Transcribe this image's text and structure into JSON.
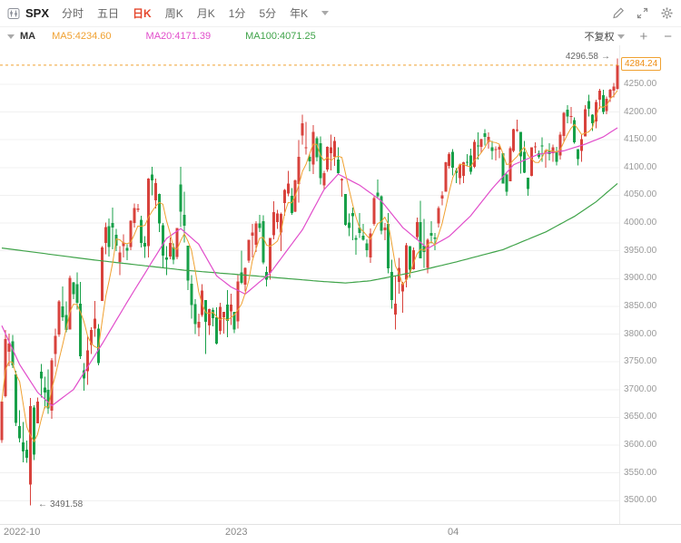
{
  "toolbar": {
    "symbol": "SPX",
    "active_color": "#e5472d",
    "tabs": [
      {
        "label": "分时",
        "active": false
      },
      {
        "label": "五日",
        "active": false
      },
      {
        "label": "日K",
        "active": true
      },
      {
        "label": "周K",
        "active": false
      },
      {
        "label": "月K",
        "active": false
      },
      {
        "label": "1分",
        "active": false
      },
      {
        "label": "5分",
        "active": false
      },
      {
        "label": "年K",
        "active": false
      }
    ],
    "icons": [
      "caret-down-icon",
      "pencil-icon",
      "expand-icon",
      "gear-icon"
    ]
  },
  "legend": {
    "indicator": "MA",
    "items": [
      {
        "label": "MA5:4234.60",
        "color": "#f0a131"
      },
      {
        "label": "MA20:4171.39",
        "color": "#e14dcb"
      },
      {
        "label": "MA100:4071.25",
        "color": "#3fa349"
      }
    ],
    "adjust_label": "不复权",
    "zoom_in": "+",
    "zoom_out": "−"
  },
  "chart_data": {
    "type": "candlestick",
    "symbol": "SPX",
    "period": "日K",
    "current_price": 4284.24,
    "current_price_label": "4284.24",
    "high_annotation": {
      "text": "4296.58",
      "price": 4296.58,
      "index": 172,
      "arrow": "→"
    },
    "low_annotation": {
      "text": "3491.58",
      "price": 3491.58,
      "index": 8,
      "arrow": "←"
    },
    "price_range": {
      "min": 3458,
      "max": 4320
    },
    "y_axis_labels": [
      "4250.00",
      "4200.00",
      "4150.00",
      "4100.00",
      "4050.00",
      "4000.00",
      "3950.00",
      "3900.00",
      "3850.00",
      "3800.00",
      "3750.00",
      "3700.00",
      "3650.00",
      "3600.00",
      "3550.00",
      "3500.00"
    ],
    "x_axis_labels": [
      {
        "label": "2022-10",
        "index": 0
      },
      {
        "label": "2023",
        "index": 63
      },
      {
        "label": "04",
        "index": 125
      }
    ],
    "colors": {
      "up": "#d8423c",
      "down": "#18a049",
      "ma5": "#f0a131",
      "ma20": "#e14dcb",
      "ma100": "#3fa349",
      "current": "#f0a131",
      "grid": "#f0f0f0"
    },
    "ma20_points": [
      [
        0,
        3815
      ],
      [
        5,
        3745
      ],
      [
        10,
        3695
      ],
      [
        14,
        3671
      ],
      [
        20,
        3700
      ],
      [
        28,
        3782
      ],
      [
        36,
        3868
      ],
      [
        41,
        3920
      ],
      [
        46,
        3972
      ],
      [
        50,
        3990
      ],
      [
        55,
        3962
      ],
      [
        60,
        3905
      ],
      [
        64,
        3885
      ],
      [
        68,
        3872
      ],
      [
        75,
        3910
      ],
      [
        84,
        3988
      ],
      [
        90,
        4060
      ],
      [
        94,
        4088
      ],
      [
        100,
        4068
      ],
      [
        106,
        4040
      ],
      [
        112,
        3992
      ],
      [
        119,
        3954
      ],
      [
        125,
        3976
      ],
      [
        131,
        4013
      ],
      [
        137,
        4062
      ],
      [
        143,
        4105
      ],
      [
        150,
        4124
      ],
      [
        157,
        4130
      ],
      [
        163,
        4142
      ],
      [
        168,
        4155
      ],
      [
        172,
        4171.39
      ]
    ],
    "ma100_points": [
      [
        0,
        3955
      ],
      [
        25,
        3934
      ],
      [
        51,
        3915
      ],
      [
        76,
        3902
      ],
      [
        89,
        3895
      ],
      [
        96,
        3892
      ],
      [
        103,
        3896
      ],
      [
        114,
        3910
      ],
      [
        127,
        3930
      ],
      [
        140,
        3952
      ],
      [
        152,
        3984
      ],
      [
        160,
        4012
      ],
      [
        166,
        4038
      ],
      [
        172,
        4071.25
      ]
    ],
    "candles": [
      [
        3609,
        3681,
        3604,
        3678
      ],
      [
        3688,
        3807,
        3686,
        3791
      ],
      [
        3768,
        3801,
        3742,
        3783
      ],
      [
        3787,
        3798,
        3739,
        3744
      ],
      [
        3727,
        3734,
        3634,
        3640
      ],
      [
        3634,
        3663,
        3605,
        3612
      ],
      [
        3605,
        3642,
        3569,
        3589
      ],
      [
        3592,
        3608,
        3568,
        3577
      ],
      [
        3529,
        3685,
        3491.58,
        3670
      ],
      [
        3668,
        3672,
        3573,
        3583
      ],
      [
        3639,
        3686,
        3639,
        3678
      ],
      [
        3732,
        3746,
        3686,
        3720
      ],
      [
        3704,
        3723,
        3666,
        3695
      ],
      [
        3700,
        3736,
        3656,
        3666
      ],
      [
        3662,
        3757,
        3647,
        3753
      ],
      [
        3764,
        3810,
        3741,
        3797
      ],
      [
        3799,
        3861,
        3795,
        3859
      ],
      [
        3850,
        3886,
        3824,
        3830
      ],
      [
        3834,
        3859,
        3803,
        3807
      ],
      [
        3808,
        3905,
        3808,
        3901
      ],
      [
        3893,
        3894,
        3863,
        3872
      ],
      [
        3890,
        3911,
        3844,
        3856
      ],
      [
        3855,
        3894,
        3755,
        3760
      ],
      [
        3735,
        3748,
        3698,
        3720
      ],
      [
        3733,
        3796,
        3709,
        3771
      ],
      [
        3780,
        3812,
        3764,
        3807
      ],
      [
        3810,
        3860,
        3795,
        3828
      ],
      [
        3810,
        3818,
        3744,
        3748
      ],
      [
        3860,
        3958,
        3860,
        3956
      ],
      [
        3964,
        4001,
        3944,
        3993
      ],
      [
        3994,
        4008,
        3940,
        3957
      ],
      [
        4000,
        4028,
        3953,
        3992
      ],
      [
        3979,
        3989,
        3949,
        3959
      ],
      [
        3930,
        3958,
        3906,
        3947
      ],
      [
        3958,
        3980,
        3938,
        3965
      ],
      [
        3955,
        3962,
        3933,
        3950
      ],
      [
        3957,
        4005,
        3951,
        4004
      ],
      [
        4000,
        4035,
        3992,
        4027
      ],
      [
        4024,
        4034,
        4020,
        4026
      ],
      [
        4006,
        4013,
        3956,
        3964
      ],
      [
        3964,
        3976,
        3937,
        3958
      ],
      [
        3958,
        4081,
        3938,
        4080
      ],
      [
        4087,
        4101,
        4050,
        4077
      ],
      [
        4041,
        4080,
        4026,
        4072
      ],
      [
        4052,
        4053,
        3984,
        3999
      ],
      [
        3996,
        4000,
        3918,
        3941
      ],
      [
        3938,
        3958,
        3906,
        3934
      ],
      [
        3940,
        3974,
        3935,
        3964
      ],
      [
        3957,
        3963,
        3926,
        3934
      ],
      [
        3939,
        3991,
        3935,
        3991
      ],
      [
        4069,
        4101,
        3993,
        4020
      ],
      [
        4015,
        4056,
        3965,
        3995
      ],
      [
        3959,
        3959,
        3879,
        3896
      ],
      [
        3891,
        3906,
        3828,
        3852
      ],
      [
        3854,
        3863,
        3800,
        3818
      ],
      [
        3811,
        3837,
        3796,
        3822
      ],
      [
        3834,
        3890,
        3831,
        3878
      ],
      [
        3861,
        3861,
        3764,
        3822
      ],
      [
        3816,
        3846,
        3798,
        3845
      ],
      [
        3843,
        3847,
        3814,
        3829
      ],
      [
        3830,
        3848,
        3781,
        3783
      ],
      [
        3806,
        3856,
        3799,
        3849
      ],
      [
        3830,
        3840,
        3801,
        3840
      ],
      [
        3853,
        3879,
        3794,
        3824
      ],
      [
        3841,
        3873,
        3816,
        3853
      ],
      [
        3840,
        3840,
        3802,
        3808
      ],
      [
        3823,
        3906,
        3810,
        3895
      ],
      [
        3911,
        3950,
        3890,
        3892
      ],
      [
        3889,
        3920,
        3877,
        3919
      ],
      [
        3932,
        3970,
        3928,
        3970
      ],
      [
        3977,
        3998,
        3938,
        3983
      ],
      [
        3961,
        4003,
        3948,
        3999
      ],
      [
        3999,
        4015,
        3984,
        3991
      ],
      [
        4003,
        4014,
        3926,
        3929
      ],
      [
        3912,
        3922,
        3886,
        3898
      ],
      [
        3910,
        3973,
        3898,
        3973
      ],
      [
        3978,
        4039,
        3971,
        4020
      ],
      [
        4002,
        4024,
        3989,
        4017
      ],
      [
        3983,
        4019,
        3949,
        4016
      ],
      [
        4036,
        4061,
        4013,
        4060
      ],
      [
        4053,
        4094,
        4048,
        4071
      ],
      [
        4049,
        4063,
        4015,
        4018
      ],
      [
        4020,
        4078,
        4020,
        4077
      ],
      [
        4070,
        4149,
        4037,
        4119
      ],
      [
        4158,
        4195,
        4141,
        4180
      ],
      [
        4136,
        4182,
        4123,
        4136
      ],
      [
        4119,
        4124,
        4093,
        4111
      ],
      [
        4105,
        4176,
        4088,
        4164
      ],
      [
        4153,
        4156,
        4111,
        4118
      ],
      [
        4144,
        4156,
        4069,
        4081
      ],
      [
        4068,
        4094,
        4060,
        4090
      ],
      [
        4096,
        4138,
        4092,
        4137
      ],
      [
        4126,
        4159,
        4095,
        4136
      ],
      [
        4119,
        4155,
        4103,
        4148
      ],
      [
        4114,
        4136,
        4089,
        4090
      ],
      [
        4077,
        4081,
        4047,
        4079
      ],
      [
        4052,
        4052,
        3995,
        3997
      ],
      [
        4001,
        4017,
        3976,
        3991
      ],
      [
        4018,
        4028,
        3969,
        4012
      ],
      [
        3973,
        3978,
        3943,
        3970
      ],
      [
        3992,
        4018,
        3973,
        3982
      ],
      [
        3977,
        3998,
        3968,
        3970
      ],
      [
        3963,
        3971,
        3939,
        3951
      ],
      [
        3938,
        3990,
        3928,
        3981
      ],
      [
        3998,
        4048,
        3995,
        4045
      ],
      [
        4055,
        4078,
        4044,
        4048
      ],
      [
        4048,
        4050,
        3980,
        3986
      ],
      [
        3987,
        4000,
        3969,
        3992
      ],
      [
        3998,
        4018,
        3909,
        3918
      ],
      [
        3912,
        3934,
        3846,
        3861
      ],
      [
        3835,
        3905,
        3808,
        3855
      ],
      [
        3894,
        3937,
        3873,
        3919
      ],
      [
        3877,
        3894,
        3838,
        3891
      ],
      [
        3898,
        3964,
        3884,
        3960
      ],
      [
        3958,
        3958,
        3901,
        3916
      ],
      [
        3917,
        3956,
        3916,
        3951
      ],
      [
        3975,
        4010,
        3971,
        4002
      ],
      [
        4002,
        4040,
        3936,
        3936
      ],
      [
        3959,
        4007,
        3919,
        3948
      ],
      [
        3919,
        3972,
        3909,
        3970
      ],
      [
        3982,
        4003,
        3963,
        3977
      ],
      [
        3974,
        3982,
        3951,
        3971
      ],
      [
        3999,
        4030,
        3992,
        4027
      ],
      [
        4044,
        4057,
        4032,
        4050
      ],
      [
        4056,
        4110,
        4056,
        4109
      ],
      [
        4103,
        4127,
        4098,
        4124
      ],
      [
        4128,
        4133,
        4086,
        4100
      ],
      [
        4095,
        4099,
        4072,
        4090
      ],
      [
        4081,
        4107,
        4069,
        4105
      ],
      [
        4085,
        4110,
        4072,
        4109
      ],
      [
        4110,
        4124,
        4102,
        4109
      ],
      [
        4122,
        4134,
        4087,
        4092
      ],
      [
        4101,
        4150,
        4099,
        4146
      ],
      [
        4140,
        4163,
        4114,
        4138
      ],
      [
        4137,
        4152,
        4126,
        4151
      ],
      [
        4162,
        4169,
        4140,
        4155
      ],
      [
        4146,
        4163,
        4134,
        4155
      ],
      [
        4136,
        4148,
        4114,
        4130
      ],
      [
        4132,
        4138,
        4113,
        4133
      ],
      [
        4132,
        4142,
        4117,
        4137
      ],
      [
        4126,
        4126,
        4072,
        4071
      ],
      [
        4087,
        4089,
        4049,
        4056
      ],
      [
        4075,
        4138,
        4075,
        4135
      ],
      [
        4130,
        4170,
        4127,
        4169
      ],
      [
        4167,
        4186,
        4164,
        4168
      ],
      [
        4164,
        4164,
        4089,
        4120
      ],
      [
        4128,
        4148,
        4090,
        4091
      ],
      [
        4082,
        4082,
        4049,
        4061
      ],
      [
        4085,
        4136,
        4084,
        4136
      ],
      [
        4136,
        4145,
        4126,
        4138
      ],
      [
        4126,
        4131,
        4116,
        4119
      ],
      [
        4140,
        4154,
        4110,
        4138
      ],
      [
        4128,
        4131,
        4100,
        4131
      ],
      [
        4130,
        4144,
        4113,
        4124
      ],
      [
        4126,
        4141,
        4110,
        4136
      ],
      [
        4127,
        4137,
        4104,
        4110
      ],
      [
        4122,
        4164,
        4114,
        4159
      ],
      [
        4157,
        4200,
        4146,
        4198
      ],
      [
        4204,
        4212,
        4180,
        4192
      ],
      [
        4191,
        4209,
        4179,
        4193
      ],
      [
        4185,
        4190,
        4143,
        4145
      ],
      [
        4133,
        4133,
        4104,
        4115
      ],
      [
        4130,
        4160,
        4110,
        4151
      ],
      [
        4156,
        4212,
        4156,
        4205
      ],
      [
        4220,
        4231,
        4192,
        4206
      ],
      [
        4195,
        4196,
        4166,
        4180
      ],
      [
        4183,
        4222,
        4171,
        4218
      ],
      [
        4222,
        4242,
        4206,
        4238
      ],
      [
        4230,
        4240,
        4196,
        4200
      ],
      [
        4202,
        4228,
        4196,
        4224
      ],
      [
        4226,
        4242,
        4218,
        4240
      ],
      [
        4238,
        4252,
        4226,
        4246
      ],
      [
        4242,
        4296.58,
        4240,
        4284.24
      ]
    ]
  }
}
